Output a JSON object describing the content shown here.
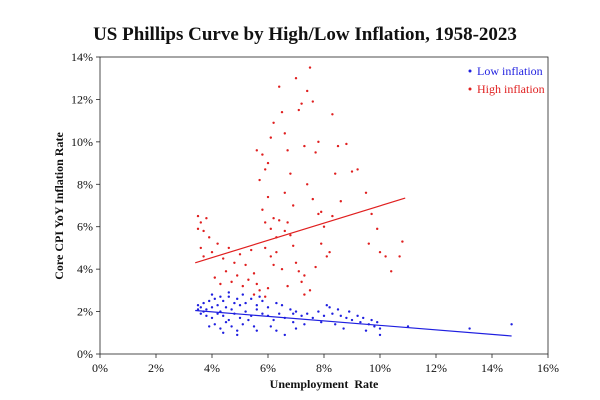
{
  "chart_data": {
    "type": "scatter",
    "title": "US Phillips Curve by High/Low Inflation, 1958-2023",
    "xlabel": "Unemployment  Rate",
    "ylabel": "Core CPI YoY Inflation Rate",
    "xlim": [
      0,
      16
    ],
    "ylim": [
      0,
      14
    ],
    "x_ticks": [
      0,
      2,
      4,
      6,
      8,
      10,
      12,
      14,
      16
    ],
    "y_ticks": [
      0,
      2,
      4,
      6,
      8,
      10,
      12,
      14
    ],
    "x_tick_labels": [
      "0%",
      "2%",
      "4%",
      "6%",
      "8%",
      "10%",
      "12%",
      "14%",
      "16%"
    ],
    "y_tick_labels": [
      "0%",
      "2%",
      "4%",
      "6%",
      "8%",
      "10%",
      "12%",
      "14%"
    ],
    "grid": false,
    "legend_position": "top-right",
    "series": [
      {
        "name": "Low inflation",
        "color": "#1f1fe0",
        "marker": "dot",
        "points": [
          [
            3.5,
            2.3
          ],
          [
            3.6,
            2.2
          ],
          [
            3.7,
            2.4
          ],
          [
            3.8,
            2.1
          ],
          [
            3.9,
            2.5
          ],
          [
            4.0,
            2.2
          ],
          [
            4.1,
            2.6
          ],
          [
            4.2,
            2.3
          ],
          [
            4.3,
            2.0
          ],
          [
            4.4,
            2.5
          ],
          [
            4.5,
            2.2
          ],
          [
            4.6,
            2.7
          ],
          [
            4.7,
            2.1
          ],
          [
            4.8,
            2.4
          ],
          [
            4.9,
            2.6
          ],
          [
            5.0,
            2.3
          ],
          [
            3.6,
            1.9
          ],
          [
            3.8,
            1.8
          ],
          [
            4.0,
            1.7
          ],
          [
            4.2,
            1.9
          ],
          [
            4.4,
            1.8
          ],
          [
            4.6,
            1.6
          ],
          [
            4.8,
            1.9
          ],
          [
            5.0,
            1.7
          ],
          [
            5.2,
            2.0
          ],
          [
            5.4,
            1.8
          ],
          [
            5.6,
            2.1
          ],
          [
            5.8,
            1.9
          ],
          [
            6.0,
            1.8
          ],
          [
            6.2,
            1.6
          ],
          [
            6.4,
            1.9
          ],
          [
            6.6,
            1.7
          ],
          [
            4.1,
            1.4
          ],
          [
            4.3,
            1.2
          ],
          [
            4.5,
            1.5
          ],
          [
            4.7,
            1.3
          ],
          [
            4.9,
            1.1
          ],
          [
            5.1,
            1.4
          ],
          [
            5.3,
            1.6
          ],
          [
            5.5,
            1.3
          ],
          [
            3.9,
            1.3
          ],
          [
            4.4,
            1.0
          ],
          [
            4.9,
            0.9
          ],
          [
            5.6,
            1.1
          ],
          [
            6.1,
            1.3
          ],
          [
            6.3,
            1.1
          ],
          [
            6.6,
            0.9
          ],
          [
            7.0,
            1.2
          ],
          [
            5.2,
            2.4
          ],
          [
            5.4,
            2.6
          ],
          [
            5.6,
            2.3
          ],
          [
            5.8,
            2.5
          ],
          [
            6.0,
            2.2
          ],
          [
            6.3,
            2.4
          ],
          [
            6.5,
            2.3
          ],
          [
            6.8,
            2.1
          ],
          [
            7.0,
            2.0
          ],
          [
            7.2,
            1.8
          ],
          [
            7.4,
            1.9
          ],
          [
            7.6,
            1.7
          ],
          [
            7.8,
            2.0
          ],
          [
            8.0,
            1.8
          ],
          [
            8.1,
            2.3
          ],
          [
            8.2,
            2.2
          ],
          [
            8.3,
            1.9
          ],
          [
            8.5,
            2.1
          ],
          [
            8.6,
            1.8
          ],
          [
            8.8,
            1.7
          ],
          [
            8.9,
            2.0
          ],
          [
            9.0,
            1.6
          ],
          [
            9.2,
            1.8
          ],
          [
            9.3,
            1.5
          ],
          [
            9.4,
            1.7
          ],
          [
            9.6,
            1.4
          ],
          [
            9.7,
            1.6
          ],
          [
            9.8,
            1.3
          ],
          [
            9.9,
            1.5
          ],
          [
            10.0,
            1.2
          ],
          [
            10.0,
            0.9
          ],
          [
            9.5,
            1.1
          ],
          [
            8.7,
            1.2
          ],
          [
            8.4,
            1.4
          ],
          [
            7.9,
            1.5
          ],
          [
            7.3,
            1.4
          ],
          [
            6.9,
            1.5
          ],
          [
            11.0,
            1.3
          ],
          [
            13.2,
            1.2
          ],
          [
            14.7,
            1.4
          ],
          [
            3.7,
            2.0
          ],
          [
            4.0,
            2.8
          ],
          [
            4.6,
            2.9
          ],
          [
            5.1,
            2.8
          ],
          [
            5.7,
            2.7
          ],
          [
            4.3,
            2.7
          ],
          [
            3.5,
            2.1
          ],
          [
            6.9,
            1.9
          ]
        ]
      },
      {
        "name": "High inflation",
        "color": "#e01f1f",
        "marker": "dot",
        "points": [
          [
            3.5,
            6.5
          ],
          [
            3.6,
            6.2
          ],
          [
            3.7,
            5.8
          ],
          [
            3.8,
            6.4
          ],
          [
            3.9,
            5.5
          ],
          [
            3.6,
            5.0
          ],
          [
            3.7,
            4.6
          ],
          [
            3.5,
            5.9
          ],
          [
            4.0,
            4.8
          ],
          [
            4.2,
            5.2
          ],
          [
            4.4,
            4.5
          ],
          [
            4.6,
            5.0
          ],
          [
            4.8,
            4.3
          ],
          [
            5.0,
            4.7
          ],
          [
            5.2,
            4.2
          ],
          [
            5.4,
            4.9
          ],
          [
            4.1,
            3.6
          ],
          [
            4.3,
            3.3
          ],
          [
            4.5,
            3.9
          ],
          [
            4.7,
            3.4
          ],
          [
            4.9,
            3.7
          ],
          [
            5.1,
            3.2
          ],
          [
            5.3,
            3.5
          ],
          [
            5.5,
            3.8
          ],
          [
            5.5,
            2.8
          ],
          [
            5.7,
            3.0
          ],
          [
            5.9,
            2.7
          ],
          [
            6.0,
            3.1
          ],
          [
            5.6,
            3.3
          ],
          [
            5.6,
            9.6
          ],
          [
            5.8,
            9.4
          ],
          [
            5.9,
            8.7
          ],
          [
            5.7,
            8.2
          ],
          [
            6.0,
            9.0
          ],
          [
            6.1,
            10.2
          ],
          [
            6.2,
            10.9
          ],
          [
            6.0,
            7.4
          ],
          [
            5.8,
            6.8
          ],
          [
            5.9,
            6.2
          ],
          [
            6.1,
            5.9
          ],
          [
            6.2,
            6.4
          ],
          [
            6.3,
            5.5
          ],
          [
            5.9,
            5.0
          ],
          [
            6.1,
            4.6
          ],
          [
            6.2,
            4.2
          ],
          [
            6.4,
            12.6
          ],
          [
            6.5,
            11.4
          ],
          [
            6.6,
            10.4
          ],
          [
            6.7,
            9.6
          ],
          [
            6.8,
            8.5
          ],
          [
            6.6,
            7.6
          ],
          [
            6.9,
            7.0
          ],
          [
            7.0,
            13.0
          ],
          [
            7.1,
            11.5
          ],
          [
            7.2,
            11.8
          ],
          [
            7.3,
            9.8
          ],
          [
            7.4,
            12.4
          ],
          [
            7.5,
            13.5
          ],
          [
            7.6,
            11.9
          ],
          [
            7.7,
            9.5
          ],
          [
            7.8,
            10.0
          ],
          [
            7.4,
            8.0
          ],
          [
            7.6,
            7.3
          ],
          [
            7.8,
            6.6
          ],
          [
            8.0,
            6.0
          ],
          [
            7.9,
            5.2
          ],
          [
            8.1,
            4.6
          ],
          [
            7.7,
            4.1
          ],
          [
            7.3,
            3.7
          ],
          [
            6.8,
            5.6
          ],
          [
            6.9,
            5.1
          ],
          [
            7.0,
            4.3
          ],
          [
            7.1,
            3.9
          ],
          [
            7.2,
            3.4
          ],
          [
            6.7,
            3.2
          ],
          [
            7.3,
            2.8
          ],
          [
            7.5,
            3.0
          ],
          [
            8.3,
            11.3
          ],
          [
            8.5,
            9.8
          ],
          [
            8.4,
            8.5
          ],
          [
            8.6,
            7.2
          ],
          [
            8.8,
            9.9
          ],
          [
            9.0,
            8.6
          ],
          [
            9.2,
            8.7
          ],
          [
            9.5,
            7.6
          ],
          [
            9.7,
            6.6
          ],
          [
            9.9,
            5.9
          ],
          [
            10.0,
            4.8
          ],
          [
            10.2,
            4.6
          ],
          [
            10.4,
            3.9
          ],
          [
            10.7,
            4.6
          ],
          [
            10.8,
            5.3
          ],
          [
            8.2,
            4.8
          ],
          [
            6.4,
            6.3
          ],
          [
            6.6,
            5.8
          ],
          [
            6.3,
            4.8
          ],
          [
            6.5,
            4.0
          ],
          [
            6.7,
            6.2
          ],
          [
            7.9,
            6.7
          ],
          [
            8.3,
            6.5
          ],
          [
            9.6,
            5.2
          ]
        ]
      }
    ],
    "trendlines": [
      {
        "series": "High inflation",
        "color": "#e01f1f",
        "x": [
          3.4,
          10.9
        ],
        "y": [
          4.3,
          7.35
        ]
      },
      {
        "series": "Low inflation",
        "color": "#1f1fe0",
        "x": [
          3.4,
          14.7
        ],
        "y": [
          2.05,
          0.85
        ]
      }
    ]
  }
}
